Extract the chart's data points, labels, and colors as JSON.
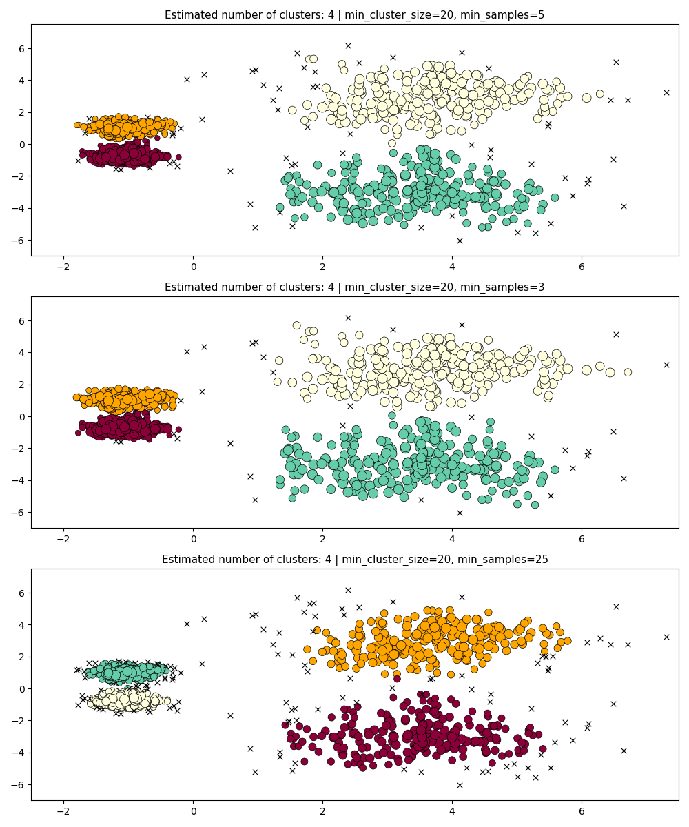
{
  "titles": [
    "Estimated number of clusters: 4 | min_cluster_size=20, min_samples=5",
    "Estimated number of clusters: 4 | min_cluster_size=20, min_samples=3",
    "Estimated number of clusters: 4 | min_cluster_size=20, min_samples=25"
  ],
  "params": [
    {
      "min_cluster_size": 20,
      "min_samples": 5
    },
    {
      "min_cluster_size": 20,
      "min_samples": 3
    },
    {
      "min_cluster_size": 20,
      "min_samples": 25
    }
  ],
  "cluster_colors": [
    "#FFA500",
    "#8B0038",
    "#66CDAA",
    "#FFFFE0"
  ],
  "noise_color": "#000000",
  "xlim": [
    -2.5,
    7.5
  ],
  "ylim": [
    -7.0,
    7.5
  ],
  "figsize": [
    10,
    12
  ],
  "dpi": 100,
  "random_state": 0,
  "title_fontsize": 11
}
